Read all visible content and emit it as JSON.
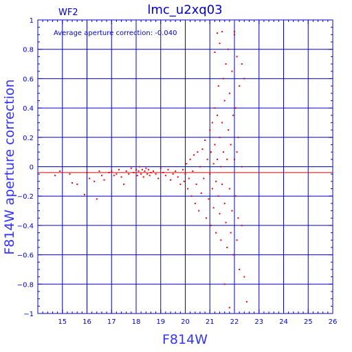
{
  "chart_data": {
    "type": "scatter",
    "title": "lmc_u2xq03",
    "panel_label": "WF2",
    "annotation": "Average aperture correction:  -0.040",
    "xlabel": "F814W",
    "ylabel": "F814W aperture correction",
    "xlim": [
      14,
      26
    ],
    "ylim": [
      -1,
      1
    ],
    "xticks": [
      15,
      16,
      17,
      18,
      19,
      20,
      21,
      22,
      23,
      24,
      25,
      26
    ],
    "yticks": [
      -1,
      -0.8,
      -0.6,
      -0.4,
      -0.2,
      0,
      0.2,
      0.4,
      0.6,
      0.8,
      1
    ],
    "xtick_labels": [
      "15",
      "16",
      "17",
      "18",
      "19",
      "20",
      "21",
      "22",
      "23",
      "24",
      "25",
      "26"
    ],
    "ytick_labels": [
      "−1",
      "−0.8",
      "−0.6",
      "−0.4",
      "−0.2",
      "0",
      "0.2",
      "0.4",
      "0.6",
      "0.8",
      "1"
    ],
    "average_correction": -0.04,
    "grid": true,
    "colors": {
      "axes": "#0000cc",
      "points": "#ee0000",
      "reference_line": "#cc0000"
    },
    "points": [
      [
        14.7,
        -0.06
      ],
      [
        14.9,
        -0.03
      ],
      [
        15.3,
        -0.05
      ],
      [
        15.4,
        -0.11
      ],
      [
        15.6,
        -0.12
      ],
      [
        15.9,
        -0.19
      ],
      [
        16.0,
        -0.04
      ],
      [
        16.1,
        -0.08
      ],
      [
        16.3,
        -0.1
      ],
      [
        16.4,
        -0.22
      ],
      [
        16.5,
        -0.03
      ],
      [
        16.6,
        -0.06
      ],
      [
        16.7,
        -0.09
      ],
      [
        16.9,
        -0.04
      ],
      [
        17.0,
        -0.03
      ],
      [
        17.1,
        -0.06
      ],
      [
        17.2,
        -0.05
      ],
      [
        17.3,
        -0.02
      ],
      [
        17.4,
        -0.07
      ],
      [
        17.5,
        -0.12
      ],
      [
        17.6,
        -0.03
      ],
      [
        17.7,
        -0.05
      ],
      [
        17.8,
        -0.01
      ],
      [
        17.9,
        -0.04
      ],
      [
        18.0,
        -0.02
      ],
      [
        18.05,
        -0.06
      ],
      [
        18.1,
        -0.03
      ],
      [
        18.15,
        0.0
      ],
      [
        18.2,
        -0.05
      ],
      [
        18.25,
        -0.02
      ],
      [
        18.3,
        -0.07
      ],
      [
        18.35,
        -0.03
      ],
      [
        18.4,
        -0.01
      ],
      [
        18.45,
        -0.05
      ],
      [
        18.5,
        -0.02
      ],
      [
        18.55,
        -0.06
      ],
      [
        18.6,
        -0.04
      ],
      [
        18.7,
        -0.03
      ],
      [
        18.8,
        -0.05
      ],
      [
        18.9,
        -0.08
      ],
      [
        19.0,
        -0.01
      ],
      [
        19.1,
        -0.04
      ],
      [
        19.2,
        -0.06
      ],
      [
        19.3,
        -0.02
      ],
      [
        19.4,
        -0.09
      ],
      [
        19.5,
        -0.05
      ],
      [
        19.6,
        -0.03
      ],
      [
        19.7,
        -0.07
      ],
      [
        19.8,
        -0.12
      ],
      [
        19.9,
        -0.02
      ],
      [
        19.95,
        -0.1
      ],
      [
        20.0,
        -0.05
      ],
      [
        20.05,
        0.02
      ],
      [
        20.1,
        -0.15
      ],
      [
        20.15,
        -0.08
      ],
      [
        20.2,
        0.05
      ],
      [
        20.25,
        -0.2
      ],
      [
        20.3,
        -0.03
      ],
      [
        20.35,
        0.08
      ],
      [
        20.4,
        -0.25
      ],
      [
        20.45,
        -0.12
      ],
      [
        20.5,
        0.1
      ],
      [
        20.55,
        -0.3
      ],
      [
        20.6,
        0.0
      ],
      [
        20.65,
        -0.18
      ],
      [
        20.7,
        0.12
      ],
      [
        20.75,
        -0.08
      ],
      [
        20.8,
        0.18
      ],
      [
        20.85,
        -0.35
      ],
      [
        20.9,
        0.05
      ],
      [
        20.95,
        -0.22
      ],
      [
        21.0,
        0.25
      ],
      [
        21.0,
        -0.05
      ],
      [
        21.05,
        0.1
      ],
      [
        21.05,
        -0.4
      ],
      [
        21.1,
        0.3
      ],
      [
        21.1,
        -0.15
      ],
      [
        21.15,
        0.02
      ],
      [
        21.15,
        -0.28
      ],
      [
        21.2,
        0.4
      ],
      [
        21.2,
        0.15
      ],
      [
        21.25,
        -0.1
      ],
      [
        21.25,
        -0.45
      ],
      [
        21.3,
        0.35
      ],
      [
        21.3,
        0.05
      ],
      [
        21.35,
        -0.2
      ],
      [
        21.35,
        0.55
      ],
      [
        21.4,
        -0.32
      ],
      [
        21.4,
        0.2
      ],
      [
        21.45,
        0.0
      ],
      [
        21.45,
        -0.5
      ],
      [
        21.5,
        0.3
      ],
      [
        21.5,
        -0.12
      ],
      [
        21.55,
        0.6
      ],
      [
        21.55,
        0.1
      ],
      [
        21.6,
        -0.25
      ],
      [
        21.6,
        0.45
      ],
      [
        21.65,
        -0.38
      ],
      [
        21.65,
        0.7
      ],
      [
        21.7,
        0.05
      ],
      [
        21.7,
        -0.55
      ],
      [
        21.75,
        0.25
      ],
      [
        21.75,
        0.8
      ],
      [
        21.8,
        -0.15
      ],
      [
        21.8,
        0.5
      ],
      [
        21.85,
        -0.45
      ],
      [
        21.85,
        0.15
      ],
      [
        21.9,
        0.65
      ],
      [
        21.9,
        -0.3
      ],
      [
        21.95,
        0.35
      ],
      [
        21.95,
        -0.6
      ],
      [
        22.0,
        0.05
      ],
      [
        22.0,
        0.9
      ],
      [
        22.05,
        -0.2
      ],
      [
        22.05,
        0.4
      ],
      [
        22.1,
        -0.5
      ],
      [
        22.1,
        0.75
      ],
      [
        22.15,
        0.2
      ],
      [
        22.15,
        -0.35
      ],
      [
        22.2,
        0.55
      ],
      [
        22.2,
        -0.7
      ],
      [
        22.3,
        0.7
      ],
      [
        22.3,
        -0.4
      ],
      [
        22.4,
        -0.75
      ],
      [
        22.4,
        0.6
      ],
      [
        22.5,
        -0.92
      ],
      [
        22.3,
        0.0
      ],
      [
        22.1,
        0.1
      ],
      [
        21.6,
        -0.8
      ],
      [
        21.8,
        -0.96
      ],
      [
        21.3,
        0.91
      ],
      [
        21.5,
        0.92
      ],
      [
        21.2,
        0.78
      ],
      [
        21.4,
        0.84
      ],
      [
        22.0,
        0.92
      ]
    ]
  }
}
